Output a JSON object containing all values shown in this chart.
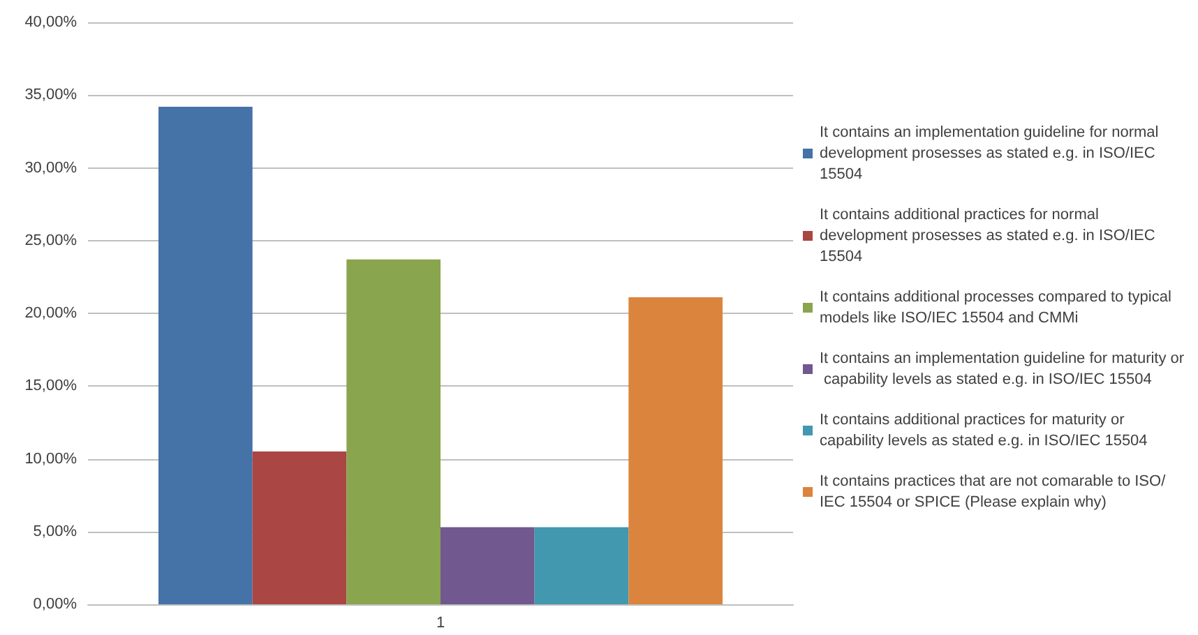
{
  "chart_data": {
    "type": "bar",
    "categories": [
      "1"
    ],
    "series": [
      {
        "name": "It contains an implementation guideline for normal development prosesses as stated e.g. in ISO/IEC 15504",
        "color": "#4572a7",
        "values": [
          34.2
        ]
      },
      {
        "name": "It contains additional practices for normal development prosesses as stated e.g. in ISO/IEC 15504",
        "color": "#aa4643",
        "values": [
          10.5
        ]
      },
      {
        "name": "It contains additional processes compared to typical models like ISO/IEC 15504 and CMMi",
        "color": "#89a54e",
        "values": [
          23.7
        ]
      },
      {
        "name": "It contains an implementation guideline for maturity or capability levels as stated e.g. in ISO/IEC 15504",
        "color": "#71588f",
        "values": [
          5.3
        ]
      },
      {
        "name": "It contains additional practices for maturity or capability levels as stated e.g. in ISO/IEC 15504",
        "color": "#4198af",
        "values": [
          5.3
        ]
      },
      {
        "name": "It contains practices that are not comarable to ISO/IEC 15504 or SPICE (Please explain why)",
        "color": "#db843d",
        "values": [
          21.1
        ]
      }
    ],
    "ylim": [
      0,
      40
    ],
    "yticks": [
      {
        "value": 0,
        "label": "0,00%"
      },
      {
        "value": 5,
        "label": "5,00%"
      },
      {
        "value": 10,
        "label": "10,00%"
      },
      {
        "value": 15,
        "label": "15,00%"
      },
      {
        "value": 20,
        "label": "20,00%"
      },
      {
        "value": 25,
        "label": "25,00%"
      },
      {
        "value": 30,
        "label": "30,00%"
      },
      {
        "value": 35,
        "label": "35,00%"
      },
      {
        "value": 40,
        "label": "40,00%"
      }
    ],
    "grid": "y",
    "legend": "right"
  }
}
